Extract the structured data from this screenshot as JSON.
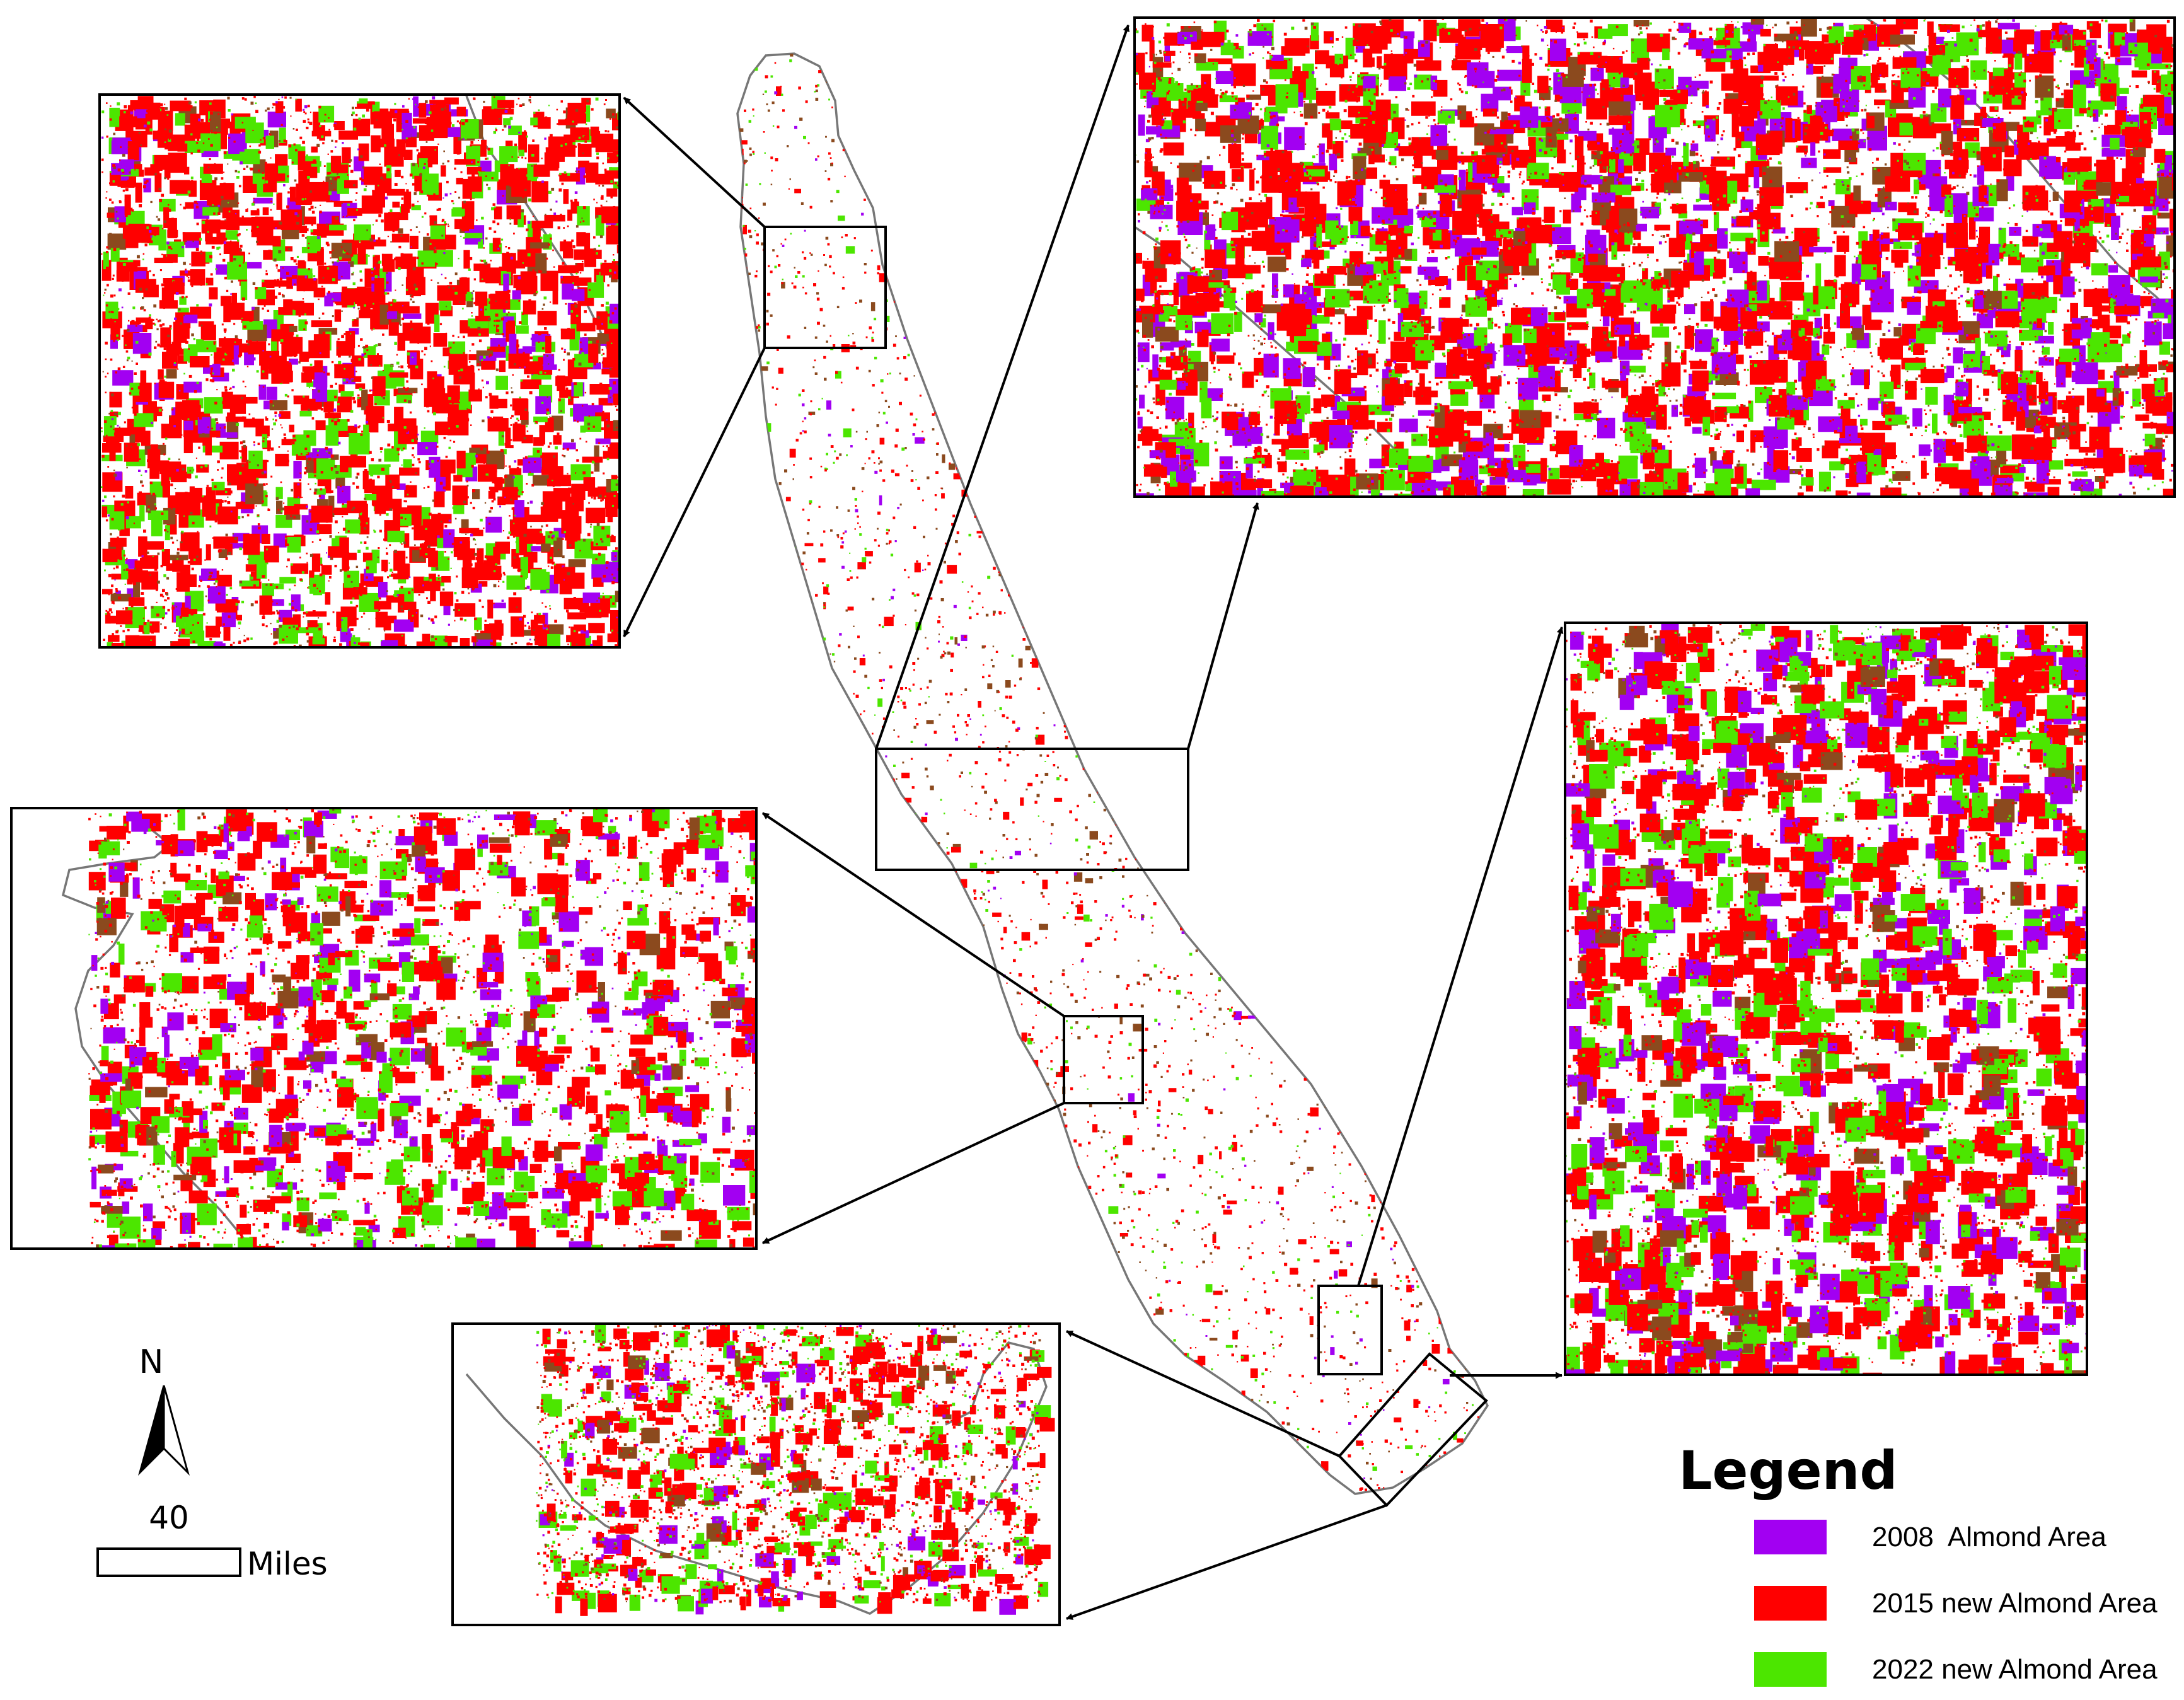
{
  "legend": {
    "title": "Legend",
    "items": [
      {
        "label": "2008  Almond Area",
        "color": "#A200F2"
      },
      {
        "label": "2015 new Almond Area",
        "color": "#FF0000"
      },
      {
        "label": "2022 new Almond Area",
        "color": "#4CE600"
      }
    ]
  },
  "north_arrow": {
    "label": "N"
  },
  "scale_bar": {
    "value": "40",
    "unit": "Miles"
  },
  "colors": {
    "almond_2008": "#A200F2",
    "almond_2015_new": "#FF0000",
    "almond_2022_new": "#4CE600",
    "brown_mixed": "#8B4A1E",
    "boundary": "#777777",
    "frame": "#000000"
  }
}
